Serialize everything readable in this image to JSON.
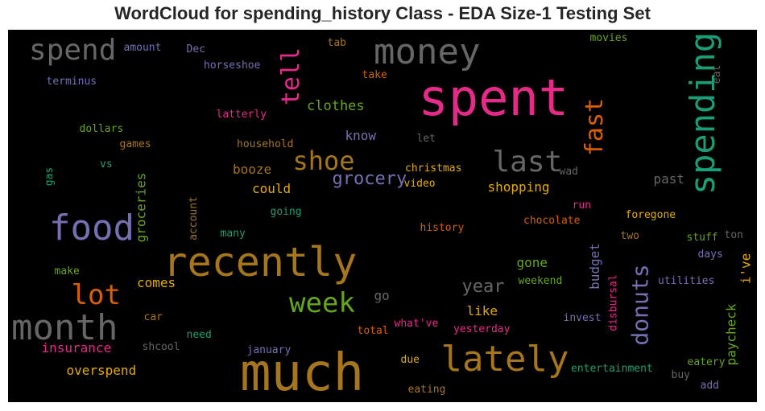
{
  "chart_data": {
    "type": "wordcloud",
    "title": "WordCloud for spending_history Class - EDA Size-1 Testing Set",
    "background": "#000000",
    "colormap": "Dark2",
    "words": [
      {
        "text": "spent",
        "weight": 1.0,
        "color": "#e7298a",
        "orientation": "horizontal"
      },
      {
        "text": "much",
        "weight": 0.95,
        "color": "#a6761d",
        "orientation": "horizontal"
      },
      {
        "text": "recently",
        "weight": 0.78,
        "color": "#a6761d",
        "orientation": "horizontal"
      },
      {
        "text": "money",
        "weight": 0.72,
        "color": "#666666",
        "orientation": "horizontal"
      },
      {
        "text": "lately",
        "weight": 0.7,
        "color": "#a6761d",
        "orientation": "horizontal"
      },
      {
        "text": "spending",
        "weight": 0.68,
        "color": "#1b9e77",
        "orientation": "vertical"
      },
      {
        "text": "food",
        "weight": 0.66,
        "color": "#7570b3",
        "orientation": "horizontal"
      },
      {
        "text": "month",
        "weight": 0.64,
        "color": "#666666",
        "orientation": "horizontal"
      },
      {
        "text": "spend",
        "weight": 0.55,
        "color": "#666666",
        "orientation": "horizontal"
      },
      {
        "text": "last",
        "weight": 0.55,
        "color": "#666666",
        "orientation": "horizontal"
      },
      {
        "text": "lot",
        "weight": 0.5,
        "color": "#d95f02",
        "orientation": "horizontal"
      },
      {
        "text": "week",
        "weight": 0.5,
        "color": "#66a61e",
        "orientation": "horizontal"
      },
      {
        "text": "shoe",
        "weight": 0.45,
        "color": "#a6761d",
        "orientation": "horizontal"
      },
      {
        "text": "tell",
        "weight": 0.44,
        "color": "#e7298a",
        "orientation": "vertical"
      },
      {
        "text": "fast",
        "weight": 0.44,
        "color": "#d95f02",
        "orientation": "vertical"
      },
      {
        "text": "donuts",
        "weight": 0.42,
        "color": "#7570b3",
        "orientation": "vertical"
      },
      {
        "text": "grocery",
        "weight": 0.36,
        "color": "#7570b3",
        "orientation": "horizontal"
      },
      {
        "text": "year",
        "weight": 0.33,
        "color": "#666666",
        "orientation": "horizontal"
      },
      {
        "text": "clothes",
        "weight": 0.3,
        "color": "#66a61e",
        "orientation": "horizontal"
      },
      {
        "text": "could",
        "weight": 0.27,
        "color": "#e6ab02",
        "orientation": "horizontal"
      },
      {
        "text": "booze",
        "weight": 0.27,
        "color": "#a6761d",
        "orientation": "horizontal"
      },
      {
        "text": "shopping",
        "weight": 0.27,
        "color": "#e6ab02",
        "orientation": "horizontal"
      },
      {
        "text": "groceries",
        "weight": 0.27,
        "color": "#66a61e",
        "orientation": "vertical"
      },
      {
        "text": "insurance",
        "weight": 0.27,
        "color": "#e7298a",
        "orientation": "horizontal"
      },
      {
        "text": "overspend",
        "weight": 0.27,
        "color": "#e6ab02",
        "orientation": "horizontal"
      },
      {
        "text": "know",
        "weight": 0.27,
        "color": "#7570b3",
        "orientation": "horizontal"
      },
      {
        "text": "gone",
        "weight": 0.27,
        "color": "#66a61e",
        "orientation": "horizontal"
      },
      {
        "text": "like",
        "weight": 0.27,
        "color": "#e6ab02",
        "orientation": "horizontal"
      },
      {
        "text": "comes",
        "weight": 0.27,
        "color": "#e6ab02",
        "orientation": "horizontal"
      },
      {
        "text": "go",
        "weight": 0.27,
        "color": "#666666",
        "orientation": "horizontal"
      },
      {
        "text": "past",
        "weight": 0.27,
        "color": "#666666",
        "orientation": "horizontal"
      },
      {
        "text": "budget",
        "weight": 0.27,
        "color": "#7570b3",
        "orientation": "vertical"
      },
      {
        "text": "paycheck",
        "weight": 0.27,
        "color": "#66a61e",
        "orientation": "vertical"
      },
      {
        "text": "i've",
        "weight": 0.27,
        "color": "#e6ab02",
        "orientation": "vertical"
      },
      {
        "text": "amount",
        "weight": 0.2,
        "color": "#7570b3",
        "orientation": "horizontal"
      },
      {
        "text": "Dec",
        "weight": 0.2,
        "color": "#7570b3",
        "orientation": "horizontal"
      },
      {
        "text": "tab",
        "weight": 0.2,
        "color": "#a6761d",
        "orientation": "horizontal"
      },
      {
        "text": "movies",
        "weight": 0.2,
        "color": "#66a61e",
        "orientation": "horizontal"
      },
      {
        "text": "eat",
        "weight": 0.2,
        "color": "#666666",
        "orientation": "vertical"
      },
      {
        "text": "horseshoe",
        "weight": 0.2,
        "color": "#7570b3",
        "orientation": "horizontal"
      },
      {
        "text": "terminus",
        "weight": 0.2,
        "color": "#7570b3",
        "orientation": "horizontal"
      },
      {
        "text": "take",
        "weight": 0.2,
        "color": "#d95f02",
        "orientation": "horizontal"
      },
      {
        "text": "latterly",
        "weight": 0.2,
        "color": "#e7298a",
        "orientation": "horizontal"
      },
      {
        "text": "dollars",
        "weight": 0.2,
        "color": "#66a61e",
        "orientation": "horizontal"
      },
      {
        "text": "let",
        "weight": 0.2,
        "color": "#666666",
        "orientation": "horizontal"
      },
      {
        "text": "games",
        "weight": 0.2,
        "color": "#a6761d",
        "orientation": "horizontal"
      },
      {
        "text": "household",
        "weight": 0.2,
        "color": "#a6761d",
        "orientation": "horizontal"
      },
      {
        "text": "vs",
        "weight": 0.2,
        "color": "#1b9e77",
        "orientation": "horizontal"
      },
      {
        "text": "gas",
        "weight": 0.2,
        "color": "#1b9e77",
        "orientation": "vertical"
      },
      {
        "text": "christmas",
        "weight": 0.2,
        "color": "#e6ab02",
        "orientation": "horizontal"
      },
      {
        "text": "wad",
        "weight": 0.2,
        "color": "#666666",
        "orientation": "horizontal"
      },
      {
        "text": "video",
        "weight": 0.2,
        "color": "#e6ab02",
        "orientation": "horizontal"
      },
      {
        "text": "account",
        "weight": 0.2,
        "color": "#a6761d",
        "orientation": "vertical"
      },
      {
        "text": "run",
        "weight": 0.2,
        "color": "#e7298a",
        "orientation": "horizontal"
      },
      {
        "text": "going",
        "weight": 0.2,
        "color": "#1b9e77",
        "orientation": "horizontal"
      },
      {
        "text": "chocolate",
        "weight": 0.2,
        "color": "#d95f02",
        "orientation": "horizontal"
      },
      {
        "text": "foregone",
        "weight": 0.2,
        "color": "#e6ab02",
        "orientation": "horizontal"
      },
      {
        "text": "many",
        "weight": 0.2,
        "color": "#1b9e77",
        "orientation": "horizontal"
      },
      {
        "text": "history",
        "weight": 0.2,
        "color": "#d95f02",
        "orientation": "horizontal"
      },
      {
        "text": "two",
        "weight": 0.2,
        "color": "#a6761d",
        "orientation": "horizontal"
      },
      {
        "text": "stuff",
        "weight": 0.2,
        "color": "#66a61e",
        "orientation": "horizontal"
      },
      {
        "text": "ton",
        "weight": 0.2,
        "color": "#666666",
        "orientation": "horizontal"
      },
      {
        "text": "days",
        "weight": 0.2,
        "color": "#7570b3",
        "orientation": "horizontal"
      },
      {
        "text": "make",
        "weight": 0.2,
        "color": "#66a61e",
        "orientation": "horizontal"
      },
      {
        "text": "weekend",
        "weight": 0.2,
        "color": "#66a61e",
        "orientation": "horizontal"
      },
      {
        "text": "utilities",
        "weight": 0.2,
        "color": "#7570b3",
        "orientation": "horizontal"
      },
      {
        "text": "disbursal",
        "weight": 0.2,
        "color": "#e7298a",
        "orientation": "vertical"
      },
      {
        "text": "car",
        "weight": 0.2,
        "color": "#a6761d",
        "orientation": "horizontal"
      },
      {
        "text": "invest",
        "weight": 0.2,
        "color": "#7570b3",
        "orientation": "horizontal"
      },
      {
        "text": "what've",
        "weight": 0.2,
        "color": "#e7298a",
        "orientation": "horizontal"
      },
      {
        "text": "need",
        "weight": 0.2,
        "color": "#1b9e77",
        "orientation": "horizontal"
      },
      {
        "text": "total",
        "weight": 0.2,
        "color": "#d95f02",
        "orientation": "horizontal"
      },
      {
        "text": "yesterday",
        "weight": 0.2,
        "color": "#e7298a",
        "orientation": "horizontal"
      },
      {
        "text": "shcool",
        "weight": 0.2,
        "color": "#666666",
        "orientation": "horizontal"
      },
      {
        "text": "january",
        "weight": 0.2,
        "color": "#7570b3",
        "orientation": "horizontal"
      },
      {
        "text": "due",
        "weight": 0.2,
        "color": "#e6ab02",
        "orientation": "horizontal"
      },
      {
        "text": "eatery",
        "weight": 0.2,
        "color": "#66a61e",
        "orientation": "horizontal"
      },
      {
        "text": "entertainment",
        "weight": 0.2,
        "color": "#1b9e77",
        "orientation": "horizontal"
      },
      {
        "text": "buy",
        "weight": 0.2,
        "color": "#666666",
        "orientation": "horizontal"
      },
      {
        "text": "eating",
        "weight": 0.2,
        "color": "#a6761d",
        "orientation": "horizontal"
      },
      {
        "text": "add",
        "weight": 0.2,
        "color": "#7570b3",
        "orientation": "horizontal"
      }
    ]
  }
}
